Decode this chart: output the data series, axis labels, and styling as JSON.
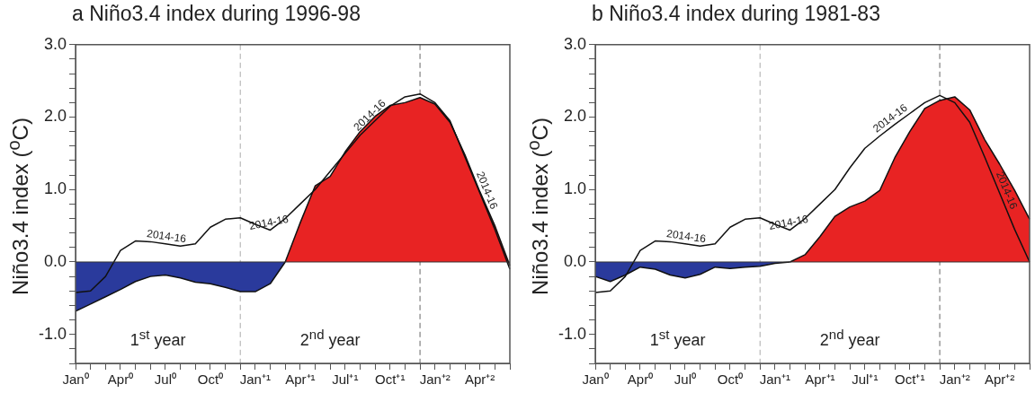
{
  "chart_data": [
    {
      "type": "area",
      "title": "a  Niño3.4 index during 1996-98",
      "ylabel": "Niño3.4 index ($^{o}$C)",
      "categories": [
        "Jan⁰",
        null,
        null,
        "Apr⁰",
        null,
        null,
        "Jul⁰",
        null,
        null,
        "Oct⁰",
        null,
        null,
        "Jan⁺¹",
        null,
        null,
        "Apr⁺¹",
        null,
        null,
        "Jul⁺¹",
        null,
        null,
        "Oct⁺¹",
        null,
        null,
        "Jan⁺²",
        null,
        null,
        "Apr⁺²",
        null,
        null
      ],
      "series": [
        {
          "color": "#2a3a9c",
          "values": [
            -0.68,
            -0.58,
            -0.48,
            -0.38,
            -0.27,
            -0.2,
            -0.18,
            -0.22,
            -0.28,
            -0.3,
            -0.35,
            -0.41,
            -0.41,
            -0.3,
            0.0,
            null,
            null,
            null,
            null,
            null,
            null,
            null,
            null,
            null,
            null,
            null,
            null,
            null,
            null,
            null
          ]
        },
        {
          "color": "#e82323",
          "values": [
            null,
            null,
            null,
            null,
            null,
            null,
            null,
            null,
            null,
            null,
            null,
            null,
            null,
            null,
            0.0,
            0.54,
            1.05,
            1.18,
            1.52,
            1.8,
            2.01,
            2.16,
            2.2,
            2.27,
            2.18,
            1.93,
            1.48,
            0.97,
            0.5,
            -0.05
          ]
        },
        {
          "type": "line",
          "name": "2014-16",
          "color": "#111111",
          "values": [
            -0.42,
            -0.4,
            -0.2,
            0.16,
            0.29,
            0.28,
            0.25,
            0.22,
            0.25,
            0.48,
            0.59,
            0.61,
            0.52,
            0.44,
            0.6,
            0.8,
            1.0,
            1.25,
            1.5,
            1.75,
            1.95,
            2.15,
            2.28,
            2.32,
            2.2,
            1.95,
            1.45,
            0.95,
            0.45,
            -0.1
          ]
        }
      ],
      "ylim": [
        -1.4,
        3.0
      ],
      "yticks": [
        {
          "value": -1.4,
          "label": null
        },
        {
          "value": -1.2,
          "label": null
        },
        {
          "value": -1.0,
          "label": "-1.0"
        },
        {
          "value": -0.8,
          "label": null
        },
        {
          "value": -0.6,
          "label": null
        },
        {
          "value": -0.4,
          "label": null
        },
        {
          "value": -0.2,
          "label": null
        },
        {
          "value": 0,
          "label": "0.0"
        },
        {
          "value": 0.2,
          "label": null
        },
        {
          "value": 0.4,
          "label": null
        },
        {
          "value": 0.6,
          "label": null
        },
        {
          "value": 0.8,
          "label": null
        },
        {
          "value": 1.0,
          "label": "1.0"
        },
        {
          "value": 1.2,
          "label": null
        },
        {
          "value": 1.4,
          "label": null
        },
        {
          "value": 1.6,
          "label": null
        },
        {
          "value": 1.8,
          "label": null
        },
        {
          "value": 2.0,
          "label": "2.0"
        },
        {
          "value": 2.2,
          "label": null
        },
        {
          "value": 2.4,
          "label": null
        },
        {
          "value": 2.6,
          "label": null
        },
        {
          "value": 2.8,
          "label": null
        },
        {
          "value": 3.0,
          "label": "3.0"
        }
      ],
      "annotations": [
        "1$^{st}$ year",
        "2$^{nd}$ year"
      ]
    },
    {
      "type": "area",
      "title": "b  Niño3.4 index during 1981-83",
      "ylabel": "Niño3.4 index ($^{o}$C)",
      "categories": [
        "Jan⁰",
        null,
        null,
        "Apr⁰",
        null,
        null,
        "Jul⁰",
        null,
        null,
        "Oct⁰",
        null,
        null,
        "Jan⁺¹",
        null,
        null,
        "Apr⁺¹",
        null,
        null,
        "Jul⁺¹",
        null,
        null,
        "Oct⁺¹",
        null,
        null,
        "Jan⁺²",
        null,
        null,
        "Apr⁺²",
        null,
        null
      ],
      "series": [
        {
          "color": "#2a3a9c",
          "values": [
            -0.2,
            -0.27,
            -0.18,
            -0.07,
            -0.1,
            -0.18,
            -0.22,
            -0.17,
            -0.07,
            -0.09,
            -0.07,
            -0.06,
            -0.02,
            0.0,
            null,
            null,
            null,
            null,
            null,
            null,
            null,
            null,
            null,
            null,
            null,
            null,
            null,
            null,
            null,
            null
          ]
        },
        {
          "color": "#e82323",
          "values": [
            null,
            null,
            null,
            null,
            null,
            null,
            null,
            null,
            null,
            null,
            null,
            null,
            null,
            0.0,
            0.1,
            0.35,
            0.63,
            0.76,
            0.84,
            0.99,
            1.44,
            1.8,
            2.12,
            2.23,
            2.28,
            2.1,
            1.69,
            1.35,
            0.99,
            0.59
          ]
        },
        {
          "type": "line",
          "name": "2014-16",
          "color": "#111111",
          "values": [
            -0.42,
            -0.4,
            -0.2,
            0.16,
            0.29,
            0.28,
            0.25,
            0.22,
            0.25,
            0.48,
            0.59,
            0.61,
            0.52,
            0.44,
            0.6,
            0.8,
            1.0,
            1.3,
            1.57,
            1.74,
            1.9,
            2.05,
            2.2,
            2.3,
            2.2,
            1.93,
            1.45,
            0.95,
            0.45,
            0.0
          ]
        }
      ],
      "ylim": [
        -1.4,
        3.0
      ],
      "yticks": [
        {
          "value": -1.4,
          "label": null
        },
        {
          "value": -1.2,
          "label": null
        },
        {
          "value": -1.0,
          "label": "-1.0"
        },
        {
          "value": -0.8,
          "label": null
        },
        {
          "value": -0.6,
          "label": null
        },
        {
          "value": -0.4,
          "label": null
        },
        {
          "value": -0.2,
          "label": null
        },
        {
          "value": 0,
          "label": "0.0"
        },
        {
          "value": 0.2,
          "label": null
        },
        {
          "value": 0.4,
          "label": null
        },
        {
          "value": 0.6,
          "label": null
        },
        {
          "value": 0.8,
          "label": null
        },
        {
          "value": 1.0,
          "label": "1.0"
        },
        {
          "value": 1.2,
          "label": null
        },
        {
          "value": 1.4,
          "label": null
        },
        {
          "value": 1.6,
          "label": null
        },
        {
          "value": 1.8,
          "label": null
        },
        {
          "value": 2.0,
          "label": "2.0"
        },
        {
          "value": 2.2,
          "label": null
        },
        {
          "value": 2.4,
          "label": null
        },
        {
          "value": 2.6,
          "label": null
        },
        {
          "value": 2.8,
          "label": null
        },
        {
          "value": 3.0,
          "label": "3.0"
        }
      ],
      "annotations": [
        "1$^{st}$ year",
        "2$^{nd}$ year"
      ]
    }
  ]
}
